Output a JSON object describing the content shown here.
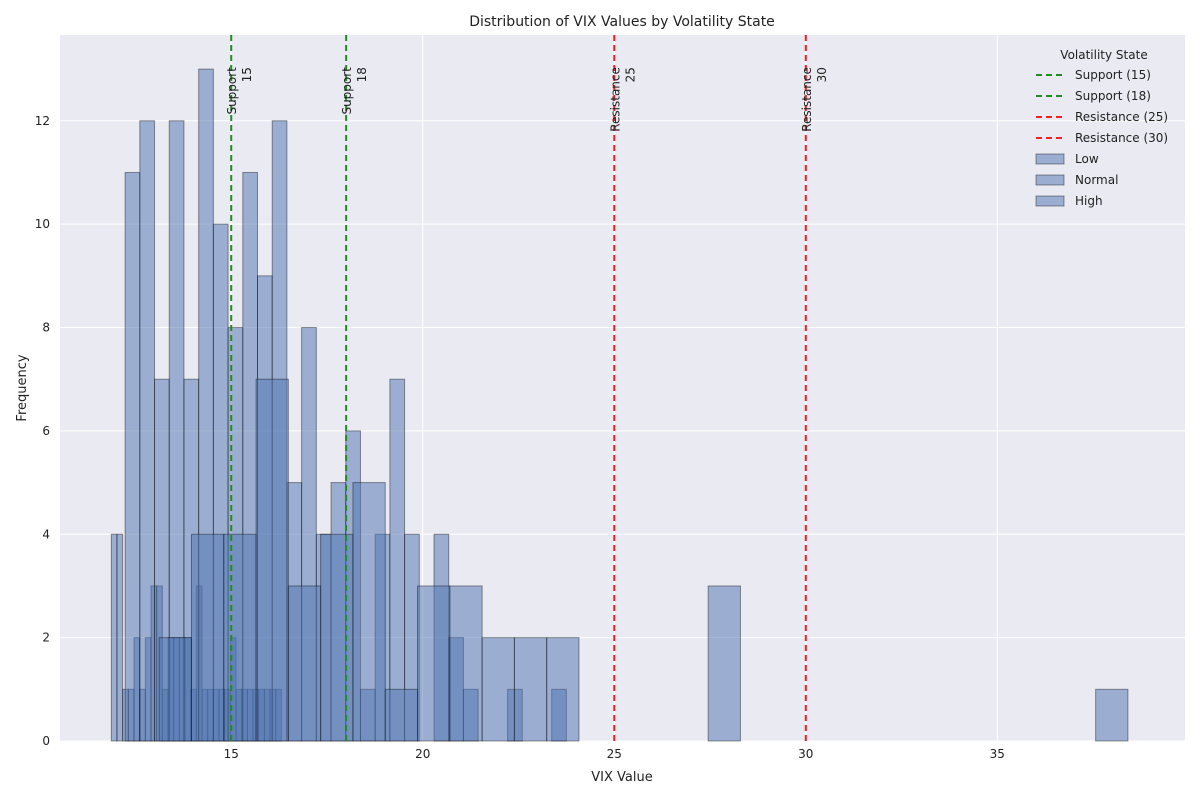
{
  "chart_data": {
    "type": "histogram",
    "title": "Distribution of VIX Values by Volatility State",
    "xlabel": "VIX Value",
    "ylabel": "Frequency",
    "xlim": [
      10.53,
      39.9
    ],
    "ylim": [
      0,
      13.66
    ],
    "xticks": [
      15,
      20,
      25,
      30,
      35
    ],
    "yticks": [
      0,
      2,
      4,
      6,
      8,
      10,
      12
    ],
    "grid": true,
    "legend_title": "Volatility State",
    "legend_position": "top-right",
    "bar_color": "#4c72b0",
    "series": [
      {
        "name": "Low",
        "bin_start": 11.87,
        "bin_width": 0.148,
        "counts": [
          4,
          4,
          1,
          1,
          2,
          1,
          2,
          3,
          3,
          1,
          2,
          2,
          2,
          2,
          1,
          3,
          1,
          1,
          1,
          1,
          1,
          2,
          1,
          1,
          1,
          1,
          1,
          1,
          1,
          1
        ]
      },
      {
        "name": "Normal",
        "bin_start": 12.23,
        "bin_width": 0.384,
        "counts": [
          11,
          12,
          7,
          12,
          7,
          13,
          10,
          8,
          11,
          9,
          12,
          5,
          8,
          4,
          5,
          6,
          1,
          4,
          7,
          4,
          0,
          4,
          2,
          1,
          0,
          0,
          1,
          0,
          0,
          1
        ]
      },
      {
        "name": "High",
        "bin_start": 13.12,
        "bin_width": 0.843,
        "counts": [
          2,
          4,
          4,
          7,
          3,
          4,
          5,
          1,
          3,
          3,
          2,
          2,
          2,
          0,
          0,
          0,
          0,
          3,
          0,
          0,
          0,
          0,
          0,
          0,
          0,
          0,
          0,
          0,
          0,
          1
        ]
      }
    ],
    "reference_lines": [
      {
        "label": "Support (15)",
        "annotation": [
          "Support",
          "15"
        ],
        "x": 15,
        "color": "#228b22"
      },
      {
        "label": "Support (18)",
        "annotation": [
          "Support",
          "18"
        ],
        "x": 18,
        "color": "#228b22"
      },
      {
        "label": "Resistance (25)",
        "annotation": [
          "Resistance",
          "25"
        ],
        "x": 25,
        "color": "#ee2222"
      },
      {
        "label": "Resistance (30)",
        "annotation": [
          "Resistance",
          "30"
        ],
        "x": 30,
        "color": "#ee2222"
      }
    ]
  }
}
